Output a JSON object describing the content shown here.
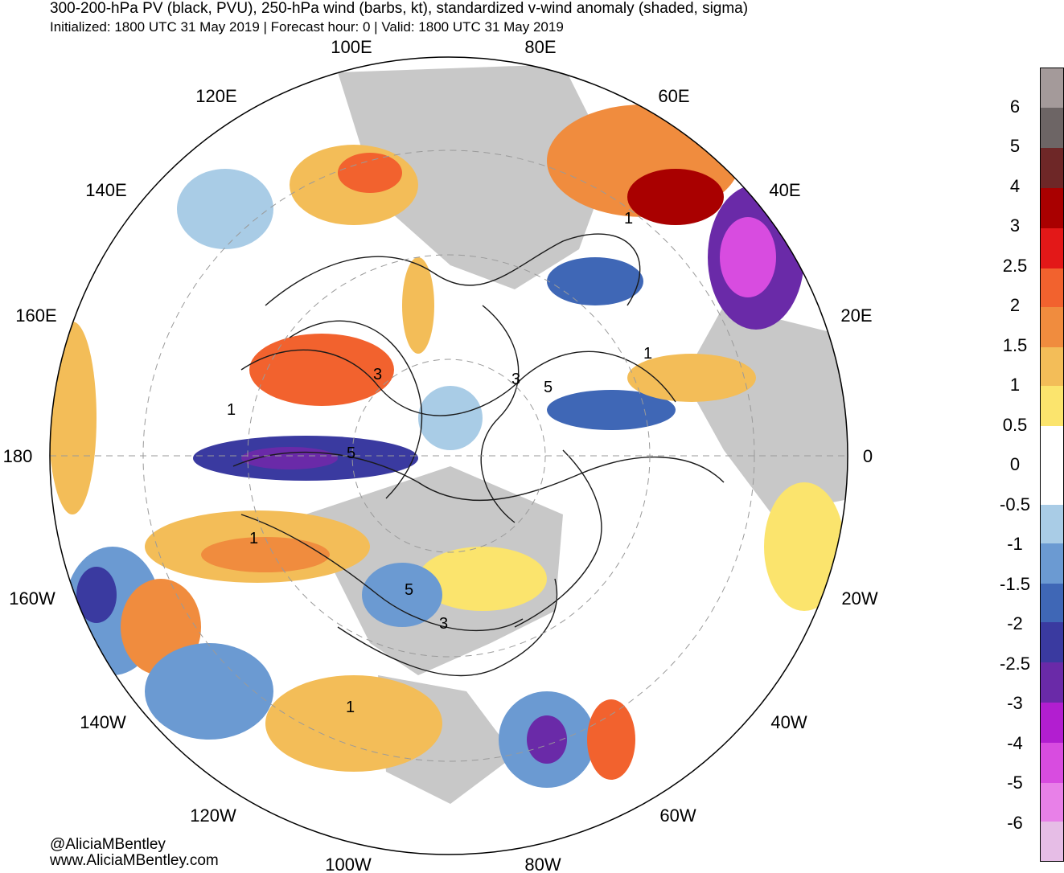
{
  "header": {
    "title": "300-200-hPa PV (black, PVU), 250-hPa wind (barbs, kt), standardized v-wind anomaly (shaded, sigma)",
    "subtitle": "Initialized: 1800 UTC 31 May 2019 | Forecast hour: 0 | Valid: 1800 UTC 31 May 2019"
  },
  "map": {
    "projection": "north polar stereographic",
    "longitude_labels": [
      {
        "text": "100E",
        "lon": 100
      },
      {
        "text": "80E",
        "lon": 80
      },
      {
        "text": "120E",
        "lon": 120
      },
      {
        "text": "60E",
        "lon": 60
      },
      {
        "text": "140E",
        "lon": 140
      },
      {
        "text": "40E",
        "lon": 40
      },
      {
        "text": "160E",
        "lon": 160
      },
      {
        "text": "20E",
        "lon": 20
      },
      {
        "text": "180",
        "lon": 180
      },
      {
        "text": "0",
        "lon": 0
      },
      {
        "text": "160W",
        "lon": -160
      },
      {
        "text": "20W",
        "lon": -20
      },
      {
        "text": "140W",
        "lon": -140
      },
      {
        "text": "40W",
        "lon": -40
      },
      {
        "text": "120W",
        "lon": -120
      },
      {
        "text": "60W",
        "lon": -60
      },
      {
        "text": "100W",
        "lon": -100
      },
      {
        "text": "80W",
        "lon": -80
      }
    ],
    "contour_labels": [
      "1",
      "3",
      "5",
      "1",
      "3",
      "5",
      "1",
      "1",
      "5",
      "3",
      "1"
    ],
    "land_color": "#c8c8c8",
    "ocean_color": "#ffffff"
  },
  "colorbar": {
    "labels": [
      "6",
      "5",
      "4",
      "3",
      "2.5",
      "2",
      "1.5",
      "1",
      "0.5",
      "0",
      "0",
      "-0.5",
      "-1",
      "-1.5",
      "-2",
      "-2.5",
      "-3",
      "-4",
      "-5",
      "-6"
    ],
    "colors": [
      "#a49a9a",
      "#6d6565",
      "#6e2727",
      "#a90000",
      "#e31818",
      "#f2622e",
      "#f08c3e",
      "#f3bd58",
      "#fbe46d",
      "#ffffff",
      "#ffffff",
      "#a9cce6",
      "#6b9ad2",
      "#3f67b6",
      "#3a3aa0",
      "#6a2aa8",
      "#b21ed0",
      "#d84ce0",
      "#e880e8",
      "#e6bde6"
    ]
  },
  "credits": {
    "handle": "@AliciaMBentley",
    "website": "www.AliciaMBentley.com"
  }
}
